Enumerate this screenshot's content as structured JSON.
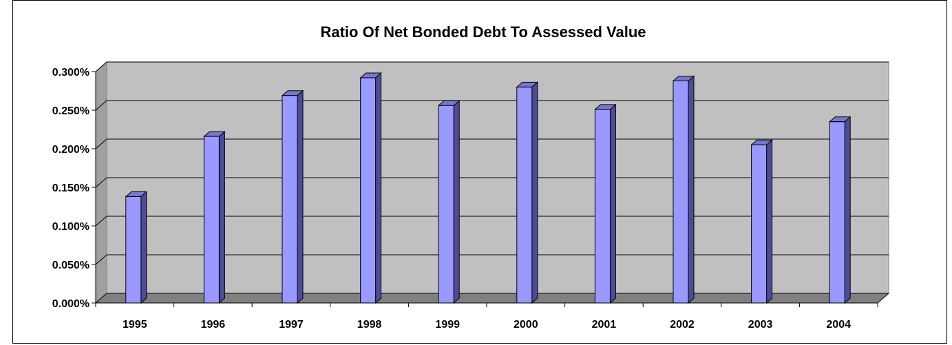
{
  "chart_data": {
    "type": "bar",
    "title": "Ratio Of Net  Bonded Debt To  Assessed Value",
    "xlabel": "",
    "ylabel": "",
    "categories": [
      "1995",
      "1996",
      "1997",
      "1998",
      "1999",
      "2000",
      "2001",
      "2002",
      "2003",
      "2004"
    ],
    "values": [
      0.138,
      0.216,
      0.269,
      0.292,
      0.256,
      0.28,
      0.251,
      0.288,
      0.205,
      0.235
    ],
    "ylim": [
      0,
      0.3
    ],
    "yticks": [
      0,
      0.05,
      0.1,
      0.15,
      0.2,
      0.25,
      0.3
    ],
    "ytick_labels": [
      "0.000%",
      "0.050%",
      "0.100%",
      "0.150%",
      "0.200%",
      "0.250%",
      "0.300%"
    ],
    "grid": true,
    "legend": "none",
    "colors": {
      "bar_front": "#9999ff",
      "bar_side": "#4c4c99",
      "bar_top": "#7777cc",
      "plot_wall": "#c0c0c0",
      "plot_floor": "#808080",
      "gridline": "#000000"
    }
  }
}
